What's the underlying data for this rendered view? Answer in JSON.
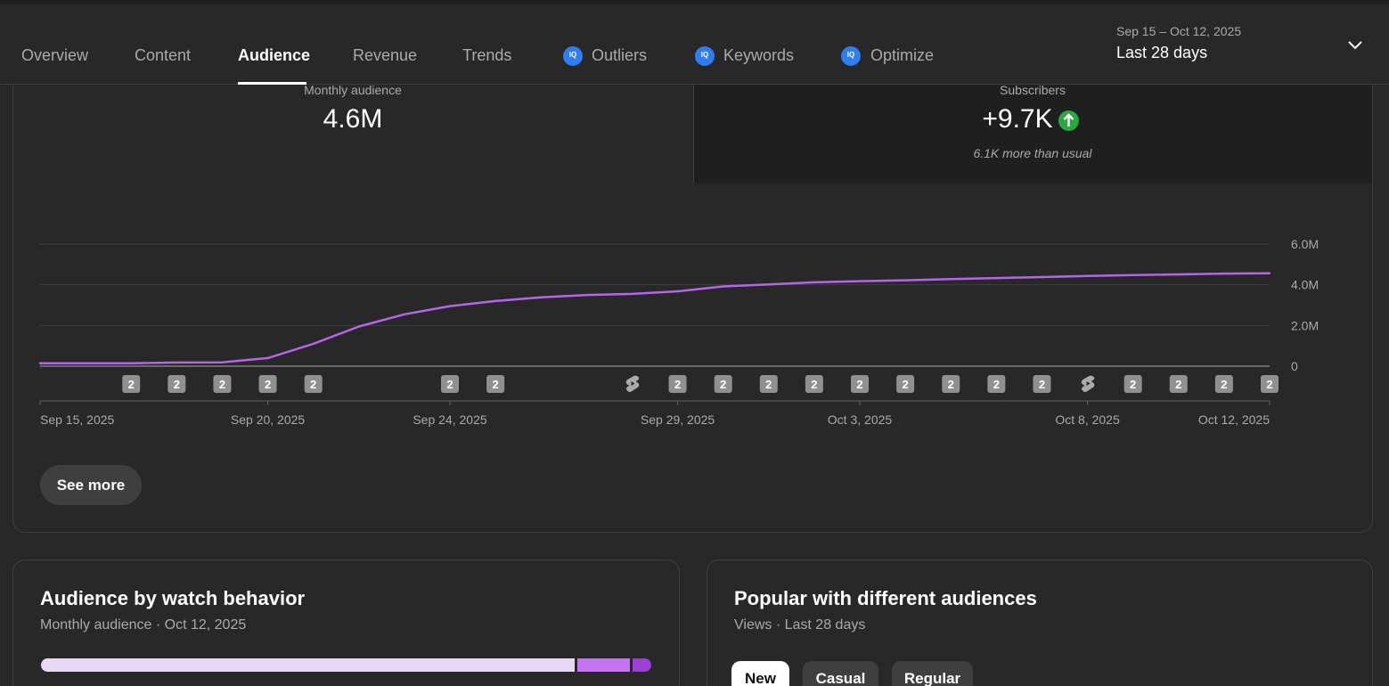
{
  "tabs": [
    {
      "label": "Overview",
      "active": false
    },
    {
      "label": "Content",
      "active": false
    },
    {
      "label": "Audience",
      "active": true
    },
    {
      "label": "Revenue",
      "active": false
    },
    {
      "label": "Trends",
      "active": false
    },
    {
      "label": "Outliers",
      "active": false,
      "icon": "iq-icon"
    },
    {
      "label": "Keywords",
      "active": false,
      "icon": "iq-icon"
    },
    {
      "label": "Optimize",
      "active": false,
      "icon": "iq-icon"
    }
  ],
  "iq_badge": "IQ",
  "date_picker": {
    "range": "Sep 15 – Oct 12, 2025",
    "preset": "Last 28 days"
  },
  "metrics": {
    "monthly_audience": {
      "label": "Monthly audience",
      "value": "4.6M"
    },
    "subscribers": {
      "label": "Subscribers",
      "value": "+9.7K",
      "note": "6.1K more than usual",
      "trend_icon": "arrow-up-icon"
    }
  },
  "chart_data": {
    "type": "line",
    "series": [
      {
        "color": "#b565ea",
        "x": [
          "Sep 15, 2025",
          "Sep 16, 2025",
          "Sep 17, 2025",
          "Sep 18, 2025",
          "Sep 19, 2025",
          "Sep 20, 2025",
          "Sep 21, 2025",
          "Sep 22, 2025",
          "Sep 23, 2025",
          "Sep 24, 2025",
          "Sep 25, 2025",
          "Sep 26, 2025",
          "Sep 27, 2025",
          "Sep 28, 2025",
          "Sep 29, 2025",
          "Sep 30, 2025",
          "Oct 1, 2025",
          "Oct 2, 2025",
          "Oct 3, 2025",
          "Oct 4, 2025",
          "Oct 5, 2025",
          "Oct 6, 2025",
          "Oct 7, 2025",
          "Oct 8, 2025",
          "Oct 9, 2025",
          "Oct 10, 2025",
          "Oct 11, 2025",
          "Oct 12, 2025"
        ],
        "values": [
          0.14,
          0.14,
          0.14,
          0.18,
          0.19,
          0.4,
          1.1,
          1.95,
          2.55,
          2.95,
          3.2,
          3.38,
          3.5,
          3.55,
          3.68,
          3.92,
          4.02,
          4.12,
          4.18,
          4.22,
          4.28,
          4.33,
          4.38,
          4.43,
          4.48,
          4.51,
          4.55,
          4.57
        ]
      }
    ],
    "ylim": [
      0,
      6000000
    ],
    "yticks": [
      "6.0M",
      "4.0M",
      "2.0M",
      "0"
    ],
    "ytick_values": [
      6,
      4,
      2,
      0
    ],
    "xticks": [
      "Sep 15, 2025",
      "Sep 20, 2025",
      "Sep 24, 2025",
      "Sep 29, 2025",
      "Oct 3, 2025",
      "Oct 8, 2025",
      "Oct 12, 2025"
    ],
    "xtick_days": [
      0,
      5,
      9,
      14,
      18,
      23,
      27
    ],
    "grid": true,
    "publish_markers": [
      {
        "day": 2,
        "label": "2"
      },
      {
        "day": 3,
        "label": "2"
      },
      {
        "day": 4,
        "label": "2"
      },
      {
        "day": 5,
        "label": "2"
      },
      {
        "day": 6,
        "label": "2"
      },
      {
        "day": 9,
        "label": "2"
      },
      {
        "day": 10,
        "label": "2"
      },
      {
        "day": 13,
        "icon": "shorts-icon"
      },
      {
        "day": 14,
        "label": "2"
      },
      {
        "day": 15,
        "label": "2"
      },
      {
        "day": 16,
        "label": "2"
      },
      {
        "day": 17,
        "label": "2"
      },
      {
        "day": 18,
        "label": "2"
      },
      {
        "day": 19,
        "label": "2"
      },
      {
        "day": 20,
        "label": "2"
      },
      {
        "day": 21,
        "label": "2"
      },
      {
        "day": 22,
        "label": "2"
      },
      {
        "day": 23,
        "icon": "shorts-icon"
      },
      {
        "day": 24,
        "label": "2"
      },
      {
        "day": 25,
        "label": "2"
      },
      {
        "day": 26,
        "label": "2"
      },
      {
        "day": 27,
        "label": "2"
      }
    ]
  },
  "see_more": "See more",
  "watch_behavior": {
    "title": "Audience by watch behavior",
    "subtitle": "Monthly audience · Oct 12, 2025",
    "shares": [
      0.88,
      0.09,
      0.03
    ],
    "colors": [
      "#e8d8f6",
      "#c474f0",
      "#9b3fd6"
    ]
  },
  "popular": {
    "title": "Popular with different audiences",
    "subtitle": "Views · Last 28 days",
    "chips": [
      {
        "label": "New",
        "selected": true
      },
      {
        "label": "Casual",
        "selected": false
      },
      {
        "label": "Regular",
        "selected": false
      }
    ]
  }
}
